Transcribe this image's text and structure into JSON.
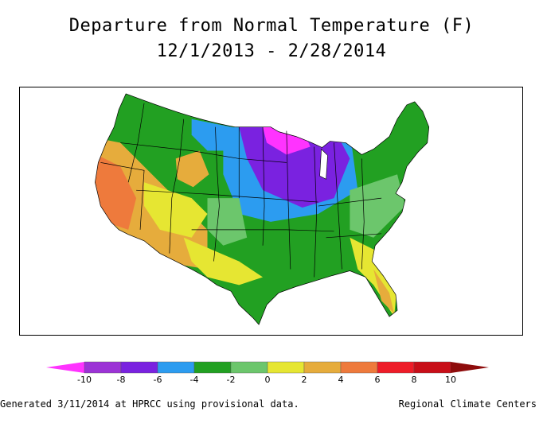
{
  "title": {
    "line1": "Departure from Normal Temperature (F)",
    "line2": "12/1/2013 - 2/28/2014"
  },
  "legend": {
    "ticks": [
      "-10",
      "-8",
      "-6",
      "-4",
      "-2",
      "0",
      "2",
      "4",
      "6",
      "8",
      "10"
    ],
    "colors": [
      "#ff33ff",
      "#9c33d6",
      "#7a22e0",
      "#2c9cf0",
      "#22a022",
      "#6cc66c",
      "#e6e632",
      "#e6ac3c",
      "#ee7a3c",
      "#ee1c28",
      "#c80e18",
      "#8e0c0c"
    ]
  },
  "map": {
    "region": "contiguous-us",
    "notable_areas": [
      {
        "name": "upper-midwest",
        "color": "#9c33d6"
      },
      {
        "name": "california-southwest",
        "color": "#e6ac3c"
      },
      {
        "name": "florida",
        "color": "#e6ac3c"
      },
      {
        "name": "northeast",
        "color": "#22a022"
      }
    ]
  },
  "footer": {
    "left": "Generated 3/11/2014 at HPRCC using provisional data.",
    "right": "Regional Climate Centers"
  }
}
